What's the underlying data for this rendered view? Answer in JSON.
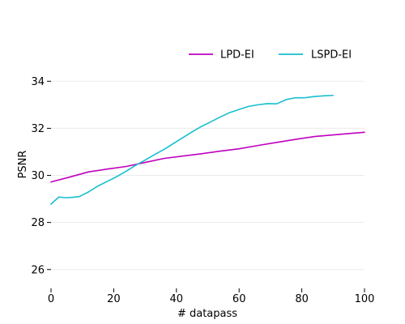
{
  "chart_data": {
    "type": "line",
    "title": "",
    "xlabel": "# datapass",
    "ylabel": "PSNR",
    "xlim": [
      0,
      100
    ],
    "ylim": [
      25.2,
      35.8
    ],
    "xticks": [
      0,
      20,
      40,
      60,
      80,
      100
    ],
    "yticks": [
      26,
      28,
      30,
      32,
      34
    ],
    "grid": true,
    "legend": "top-right",
    "series": [
      {
        "name": "LPD-EI",
        "color": "#bf00bf",
        "x": [
          0,
          6,
          12,
          18,
          24,
          30,
          36,
          42,
          48,
          54,
          60,
          66,
          72,
          78,
          84,
          90,
          96,
          100
        ],
        "y": [
          29.72,
          29.93,
          30.15,
          30.27,
          30.38,
          30.55,
          30.72,
          30.82,
          30.92,
          31.03,
          31.13,
          31.27,
          31.4,
          31.53,
          31.65,
          31.72,
          31.79,
          31.83
        ]
      },
      {
        "name": "LSPD-EI",
        "color": "#17becf",
        "x": [
          0,
          2.5,
          5,
          7,
          9,
          12,
          15,
          18,
          21,
          24,
          27,
          30,
          33,
          36,
          39,
          42,
          45,
          48,
          51,
          54,
          57,
          60,
          63,
          66,
          69,
          72,
          75,
          78,
          81,
          84,
          87,
          90
        ],
        "y": [
          28.78,
          29.08,
          29.05,
          29.07,
          29.1,
          29.3,
          29.55,
          29.75,
          29.95,
          30.18,
          30.43,
          30.65,
          30.88,
          31.1,
          31.35,
          31.6,
          31.85,
          32.08,
          32.28,
          32.48,
          32.67,
          32.8,
          32.93,
          33.0,
          33.05,
          33.04,
          33.22,
          33.3,
          33.3,
          33.35,
          33.38,
          33.4
        ]
      }
    ]
  }
}
